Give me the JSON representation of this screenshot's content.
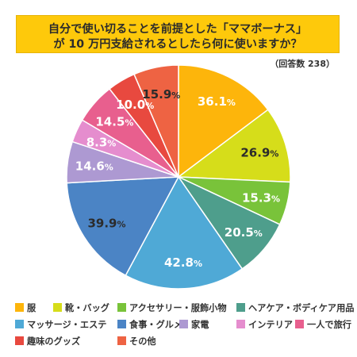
{
  "title_lines": [
    "自分で使い切ることを前提とした「ママボーナス」",
    "が 10 万円支給されるとしたら何に使いますか？"
  ],
  "note": "（回答数 238）",
  "chart_data": {
    "type": "pie",
    "title": "自分で使い切ることを前提とした「ママボーナス」が 10 万円支給されるとしたら何に使いますか？",
    "n_respondents": 238,
    "categories": [
      "服",
      "靴・バッグ",
      "アクセサリー・服飾小物",
      "ヘアケア・ボディケア用品",
      "マッサージ・エステ",
      "食事・グルメ",
      "家電",
      "インテリア",
      "一人で旅行",
      "趣味のグッズ",
      "その他"
    ],
    "values": [
      36.1,
      26.9,
      15.3,
      20.5,
      42.8,
      39.9,
      14.6,
      8.3,
      14.5,
      10.0,
      15.9
    ],
    "labels": [
      "36.1%",
      "26.9%",
      "15.3%",
      "20.5%",
      "42.8%",
      "39.9%",
      "14.6%",
      "8.3%",
      "14.5%",
      "10.0%",
      "15.9%"
    ],
    "colors": [
      "#fdb50b",
      "#d6dd1a",
      "#79c33a",
      "#4e9e8c",
      "#4fa9d6",
      "#4b84c5",
      "#ad99d2",
      "#e58dce",
      "#e85f8e",
      "#e8493f",
      "#ee6343"
    ],
    "label_colors": [
      "#ffffff",
      "#2b2b2b",
      "#ffffff",
      "#ffffff",
      "#ffffff",
      "#2b2b2b",
      "#ffffff",
      "#ffffff",
      "#ffffff",
      "#ffffff",
      "#2b2b2b"
    ],
    "legend_position": "bottom"
  }
}
